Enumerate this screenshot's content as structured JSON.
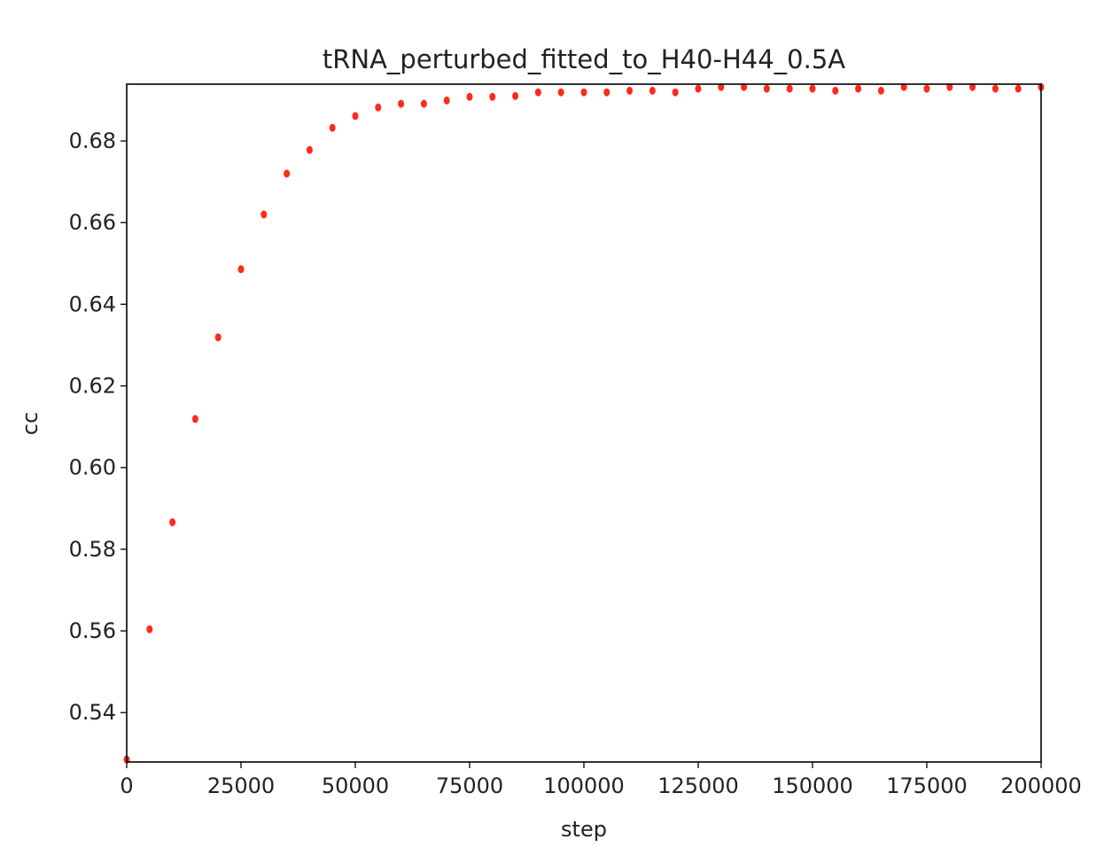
{
  "chart_data": {
    "type": "scatter",
    "title": "tRNA_perturbed_fitted_to_H40-H44_0.5A",
    "xlabel": "step",
    "ylabel": "cc",
    "xlim": [
      0,
      200000
    ],
    "ylim": [
      0.5279,
      0.6939
    ],
    "xticks": [
      0,
      25000,
      50000,
      75000,
      100000,
      125000,
      150000,
      175000,
      200000
    ],
    "yticks": [
      0.54,
      0.56,
      0.58,
      0.6,
      0.62,
      0.64,
      0.66,
      0.68
    ],
    "ytick_labels": [
      "0.54",
      "0.56",
      "0.58",
      "0.60",
      "0.62",
      "0.64",
      "0.66",
      "0.68"
    ],
    "grid": false,
    "marker_color": "#ff2a1a",
    "x": [
      0,
      5000,
      10000,
      15000,
      20000,
      25000,
      30000,
      35000,
      40000,
      45000,
      50000,
      55000,
      60000,
      65000,
      70000,
      75000,
      80000,
      85000,
      90000,
      95000,
      100000,
      105000,
      110000,
      115000,
      120000,
      125000,
      130000,
      135000,
      140000,
      145000,
      150000,
      155000,
      160000,
      165000,
      170000,
      175000,
      180000,
      185000,
      190000,
      195000,
      200000
    ],
    "y": [
      0.5285,
      0.5604,
      0.5866,
      0.6119,
      0.6319,
      0.6486,
      0.662,
      0.672,
      0.6778,
      0.6832,
      0.6861,
      0.6882,
      0.6891,
      0.6891,
      0.6899,
      0.6908,
      0.6908,
      0.691,
      0.6919,
      0.6919,
      0.6919,
      0.6919,
      0.6923,
      0.6923,
      0.6919,
      0.6928,
      0.6932,
      0.6932,
      0.6928,
      0.6928,
      0.6928,
      0.6923,
      0.6928,
      0.6923,
      0.6932,
      0.6928,
      0.6932,
      0.6932,
      0.6928,
      0.6928,
      0.6932
    ]
  }
}
